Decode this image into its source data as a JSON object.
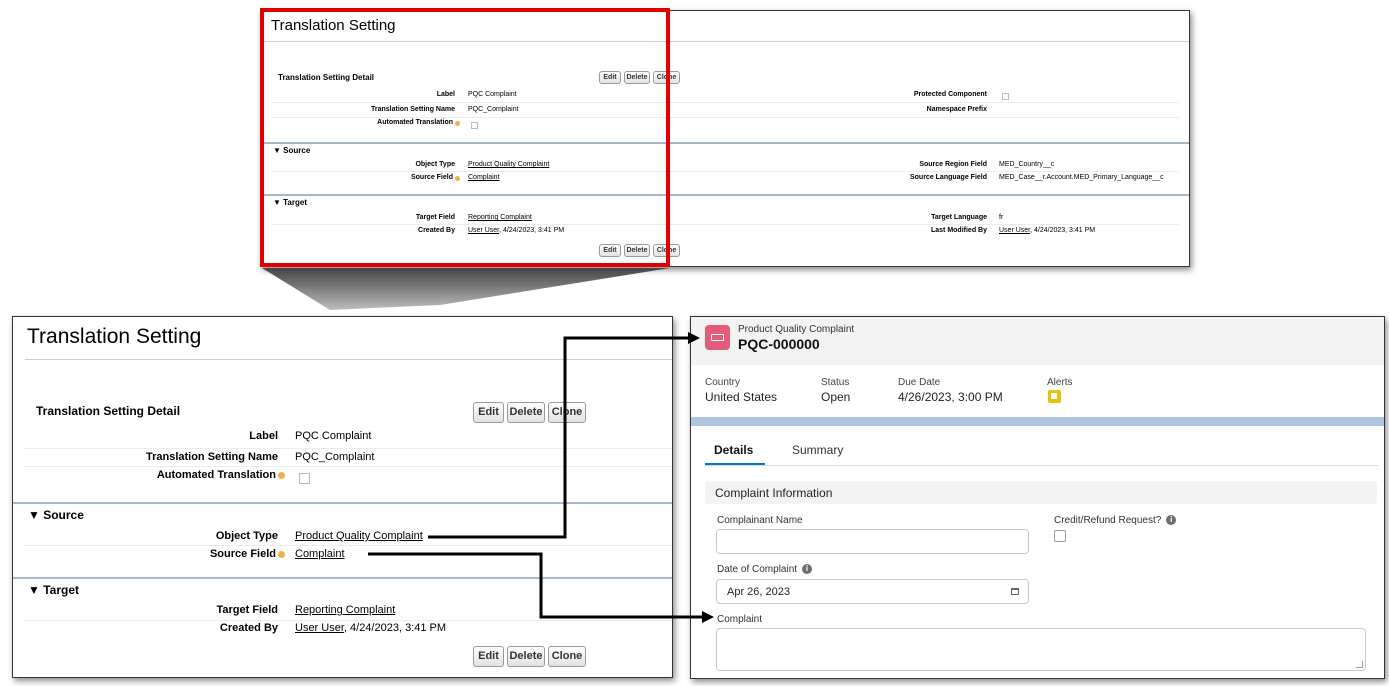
{
  "page_title": "Translation Setting",
  "detail": {
    "section_title": "Translation Setting Detail",
    "buttons": {
      "edit": "Edit",
      "delete": "Delete",
      "clone": "Clone"
    },
    "fields": {
      "label_label": "Label",
      "label_value": "PQC Complaint",
      "name_label": "Translation Setting Name",
      "name_value": "PQC_Complaint",
      "auto_label": "Automated Translation",
      "protected_label": "Protected Component",
      "namespace_label": "Namespace Prefix"
    }
  },
  "source": {
    "title": "▼ Source",
    "object_type_label": "Object Type",
    "object_type_value": "Product Quality Complaint",
    "source_field_label": "Source Field",
    "source_field_value": "Complaint",
    "region_label": "Source Region Field",
    "region_value": "MED_Country__c",
    "language_label": "Source Language Field",
    "language_value": "MED_Case__r.Account.MED_Primary_Language__c"
  },
  "target": {
    "title": "▼ Target",
    "target_field_label": "Target Field",
    "target_field_value": "Reporting Complaint",
    "created_by_label": "Created By",
    "created_by_user": "User User",
    "created_by_date": ", 4/24/2023, 3:41 PM",
    "target_language_label": "Target Language",
    "target_language_value": "fr",
    "modified_label": "Last Modified By",
    "modified_user": "User User",
    "modified_date": ", 4/24/2023, 3:41 PM"
  },
  "record": {
    "object_name": "Product Quality Complaint",
    "record_number": "PQC-000000",
    "highlights": {
      "country_label": "Country",
      "country_value": "United States",
      "status_label": "Status",
      "status_value": "Open",
      "due_label": "Due Date",
      "due_value": "4/26/2023, 3:00 PM",
      "alerts_label": "Alerts"
    },
    "tabs": {
      "details": "Details",
      "summary": "Summary"
    },
    "section_title": "Complaint Information",
    "form": {
      "complainant_label": "Complainant Name",
      "credit_label": "Credit/Refund Request?",
      "date_label": "Date of Complaint",
      "date_value": "Apr 26, 2023",
      "complaint_label": "Complaint"
    }
  },
  "colors": {
    "highlight_box": "#e00000",
    "record_icon": "#e35c79",
    "alert_icon": "#e8c20f",
    "accent": "#0176d3"
  },
  "icons": [
    "info-icon",
    "calendar-icon",
    "record-icon",
    "flag-icon",
    "resize-icon"
  ]
}
